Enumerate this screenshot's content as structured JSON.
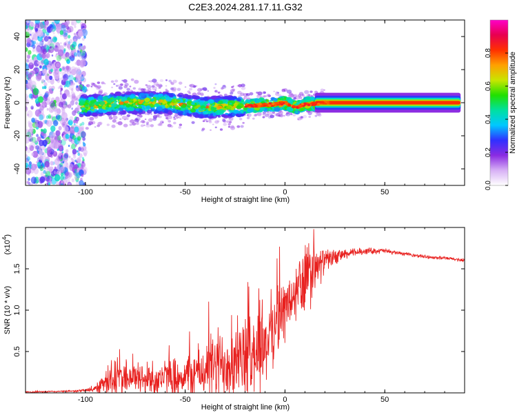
{
  "figure": {
    "title": "C2E3.2024.281.17.11.G32"
  },
  "colors": {
    "snr_line": "#e8201e",
    "axis": "#000000",
    "background": "#ffffff"
  },
  "chart_data": [
    {
      "type": "heatmap",
      "title": "",
      "xlabel": "Height of straight line (km)",
      "ylabel": "Frequency (Hz)",
      "xlim": [
        -130,
        90
      ],
      "ylim": [
        -50,
        50
      ],
      "xticks": [
        -100,
        -50,
        0,
        50
      ],
      "yticks": [
        -40,
        -20,
        0,
        20,
        40
      ],
      "colorbar": {
        "label": "Normalized spectral amplitude",
        "range": [
          0,
          1
        ],
        "ticks": [
          0.0,
          0.2,
          0.4,
          0.6,
          0.8
        ],
        "colormap": [
          "#ffffff",
          "#d7b0f5",
          "#8a2be2",
          "#3030ff",
          "#00c8ff",
          "#00e0a0",
          "#20e000",
          "#c8e600",
          "#ffa000",
          "#ff3000",
          "#e8004f",
          "#ff00c8"
        ]
      },
      "ridge": {
        "description_points_x": [
          -100,
          -80,
          -60,
          -40,
          -20,
          -5,
          0,
          5,
          10,
          15,
          20,
          50,
          88
        ],
        "description_points_y": [
          -2,
          0,
          0,
          -3,
          -2,
          -1,
          0,
          -3,
          -1,
          -0.5,
          0,
          0,
          0
        ]
      },
      "grid": false
    },
    {
      "type": "line",
      "title": "",
      "xlabel": "Height of straight line (km)",
      "ylabel": "SNR (10 * v/v)",
      "yscale_label": "(x10",
      "yscale_exp": "4",
      "xlim": [
        -130,
        90
      ],
      "ylim": [
        0,
        2.0
      ],
      "xticks": [
        -100,
        -50,
        0,
        50
      ],
      "yticks": [
        0.5,
        1.0,
        1.5
      ],
      "yticklabels": [
        "0.5",
        "1.0",
        "1.5"
      ],
      "series": [
        {
          "anchors_x": [
            -130,
            -110,
            -100,
            -95,
            -90,
            -85,
            -80,
            -70,
            -60,
            -50,
            -40,
            -35,
            -30,
            -20,
            -15,
            -10,
            -5,
            0,
            5,
            8,
            10,
            15,
            20,
            30,
            40,
            50,
            60,
            70,
            80,
            88
          ],
          "anchors_y": [
            0.01,
            0.02,
            0.03,
            0.06,
            0.15,
            0.2,
            0.22,
            0.18,
            0.2,
            0.22,
            0.3,
            0.35,
            0.42,
            0.45,
            0.55,
            0.6,
            0.9,
            1.05,
            1.2,
            1.3,
            1.4,
            1.5,
            1.62,
            1.68,
            1.72,
            1.72,
            1.68,
            1.65,
            1.63,
            1.61
          ],
          "noise_amplitude": [
            0.01,
            0.01,
            0.02,
            0.05,
            0.15,
            0.25,
            0.2,
            0.22,
            0.22,
            0.25,
            0.35,
            0.45,
            0.45,
            0.45,
            0.5,
            0.5,
            0.4,
            0.35,
            0.35,
            0.5,
            0.5,
            0.3,
            0.12,
            0.06,
            0.04,
            0.03,
            0.02,
            0.02,
            0.02,
            0.02
          ]
        }
      ],
      "grid": false
    }
  ]
}
